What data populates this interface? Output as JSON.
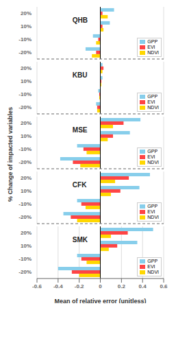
{
  "chart_data": [
    {
      "type": "bar",
      "orientation": "horizontal",
      "annotations": [
        "QHB"
      ],
      "categories": [
        "20%",
        "10%",
        "-10%",
        "-20%"
      ],
      "series": [
        {
          "name": "GPP",
          "color": "#87CEEB",
          "values": [
            0.13,
            0.09,
            -0.07,
            -0.14
          ]
        },
        {
          "name": "EVI",
          "color": "#FF4444",
          "values": [
            0.02,
            0.02,
            -0.02,
            -0.04
          ]
        },
        {
          "name": "NDVI",
          "color": "#FFD700",
          "values": [
            0.07,
            0.03,
            -0.04,
            -0.08
          ]
        }
      ],
      "xlim": [
        -0.6,
        0.6
      ],
      "xticks": [
        -0.6,
        -0.4,
        -0.2,
        0,
        0.2,
        0.4,
        0.6
      ],
      "grid": true,
      "legend": "lower right",
      "tick_labels": "y"
    },
    {
      "type": "bar",
      "orientation": "horizontal",
      "annotations": [
        "KBU"
      ],
      "categories": [
        "20%",
        "10%",
        "-10%",
        "-20%"
      ],
      "series": [
        {
          "name": "GPP",
          "color": "#87CEEB",
          "values": [
            0.02,
            0.02,
            -0.02,
            -0.04
          ]
        },
        {
          "name": "EVI",
          "color": "#FF4444",
          "values": [
            0.03,
            0.01,
            -0.01,
            -0.03
          ]
        },
        {
          "name": "NDVI",
          "color": "#FFD700",
          "values": [
            0.02,
            0.01,
            -0.01,
            -0.03
          ]
        }
      ],
      "xlim": [
        -0.6,
        0.6
      ],
      "xticks": [
        -0.6,
        -0.4,
        -0.2,
        0,
        0.2,
        0.4,
        0.6
      ],
      "grid": true,
      "legend": "lower right",
      "tick_labels": "y"
    },
    {
      "type": "bar",
      "orientation": "horizontal",
      "annotations": [
        "MSE"
      ],
      "ylabel": "% Change of impacted variables",
      "categories": [
        "20%",
        "10%",
        "-10%",
        "-20%"
      ],
      "series": [
        {
          "name": "GPP",
          "color": "#87CEEB",
          "values": [
            0.38,
            0.28,
            -0.22,
            -0.38
          ]
        },
        {
          "name": "EVI",
          "color": "#FF4444",
          "values": [
            0.22,
            0.12,
            -0.16,
            -0.26
          ]
        },
        {
          "name": "NDVI",
          "color": "#FFD700",
          "values": [
            0.12,
            0.07,
            -0.13,
            -0.19
          ]
        }
      ],
      "xlim": [
        -0.6,
        0.6
      ],
      "xticks": [
        -0.6,
        -0.4,
        -0.2,
        0,
        0.2,
        0.4,
        0.6
      ],
      "grid": true,
      "legend": "lower right",
      "tick_labels": "y"
    },
    {
      "type": "bar",
      "orientation": "horizontal",
      "annotations": [
        "CFK"
      ],
      "categories": [
        "20%",
        "10%",
        "-10%",
        "-20%"
      ],
      "series": [
        {
          "name": "GPP",
          "color": "#87CEEB",
          "values": [
            0.47,
            0.37,
            -0.22,
            -0.35
          ]
        },
        {
          "name": "EVI",
          "color": "#FF4444",
          "values": [
            0.27,
            0.19,
            -0.18,
            -0.28
          ]
        },
        {
          "name": "NDVI",
          "color": "#FFD700",
          "values": [
            0.14,
            0.1,
            -0.14,
            -0.22
          ]
        }
      ],
      "xlim": [
        -0.6,
        0.6
      ],
      "xticks": [
        -0.6,
        -0.4,
        -0.2,
        0,
        0.2,
        0.4,
        0.6
      ],
      "grid": true,
      "legend": "lower right",
      "tick_labels": "y"
    },
    {
      "type": "bar",
      "orientation": "horizontal",
      "annotations": [
        "SMK"
      ],
      "xlabel": "Mean of relative error (unitless)",
      "categories": [
        "20%",
        "10%",
        "-10%",
        "-20%"
      ],
      "series": [
        {
          "name": "GPP",
          "color": "#87CEEB",
          "values": [
            0.5,
            0.35,
            -0.22,
            -0.4
          ]
        },
        {
          "name": "EVI",
          "color": "#FF4444",
          "values": [
            0.26,
            0.16,
            -0.18,
            -0.27
          ]
        },
        {
          "name": "NDVI",
          "color": "#FFD700",
          "values": [
            0.1,
            0.08,
            -0.13,
            -0.2
          ]
        }
      ],
      "xlim": [
        -0.6,
        0.6
      ],
      "xticks": [
        -0.6,
        -0.4,
        -0.2,
        0,
        0.2,
        0.4,
        0.6
      ],
      "grid": true,
      "legend": "lower right"
    }
  ]
}
